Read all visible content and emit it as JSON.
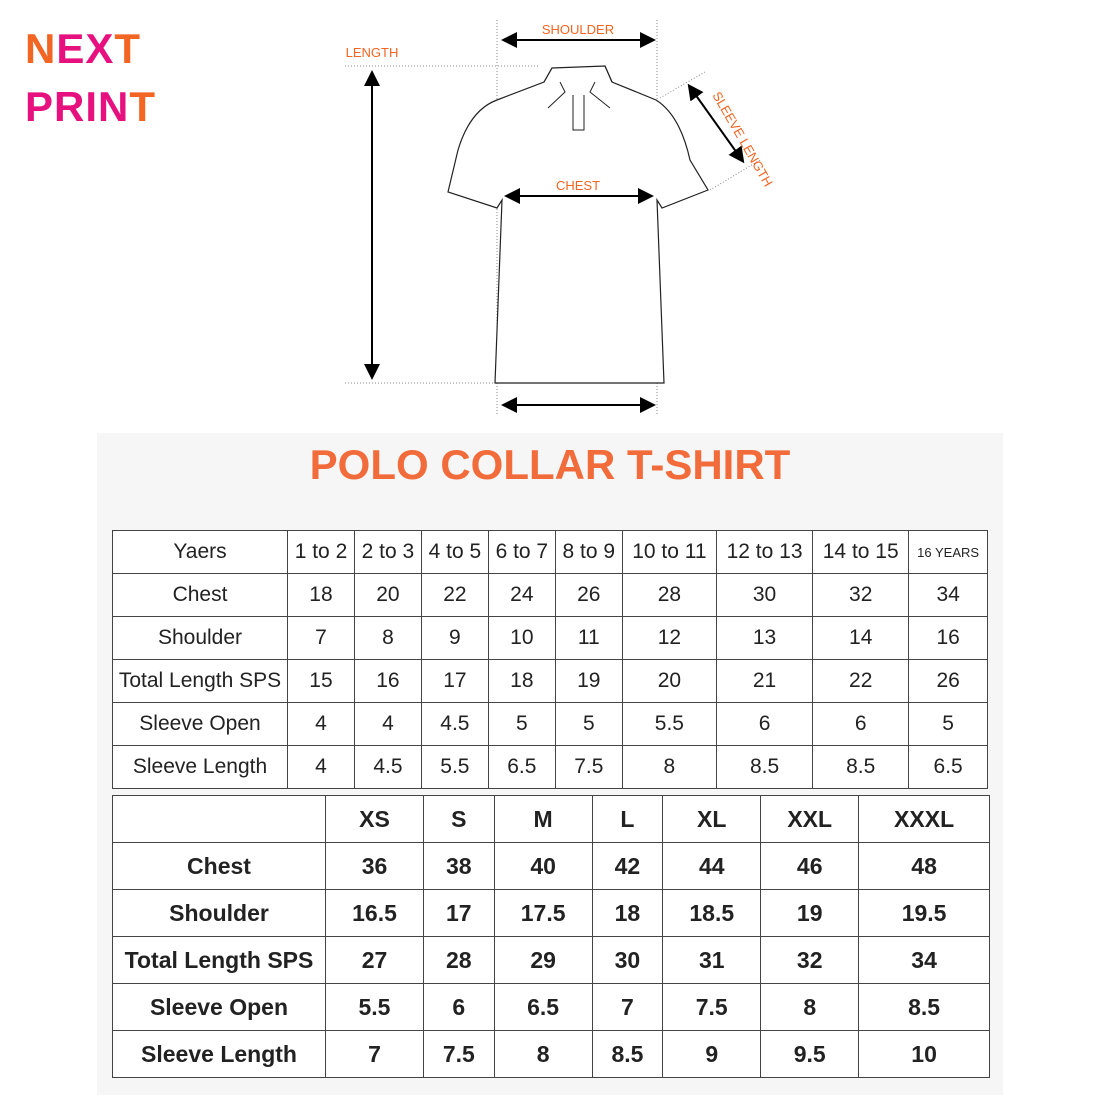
{
  "logo": {
    "line1": "NEXT",
    "line2": "PRINT",
    "colors": {
      "orange": "#f26522",
      "magenta": "#e6117f"
    }
  },
  "diagram": {
    "shoulder": "SHOULDER",
    "length": "LENGTH",
    "sleeve_length": "SLEEVE LENGTH",
    "chest": "CHEST"
  },
  "title": "POLO COLLAR T-SHIRT",
  "kids_table": {
    "header": [
      "Yaers",
      "1 to 2",
      "2 to 3",
      "4 to 5",
      "6 to 7",
      "8 to 9",
      "10 to 11",
      "12 to 13",
      "14 to 15",
      "16 YEARS"
    ],
    "rows": [
      [
        "Chest",
        "18",
        "20",
        "22",
        "24",
        "26",
        "28",
        "30",
        "32",
        "34"
      ],
      [
        "Shoulder",
        "7",
        "8",
        "9",
        "10",
        "11",
        "12",
        "13",
        "14",
        "16"
      ],
      [
        "Total Length SPS",
        "15",
        "16",
        "17",
        "18",
        "19",
        "20",
        "21",
        "22",
        "26"
      ],
      [
        "Sleeve Open",
        "4",
        "4",
        "4.5",
        "5",
        "5",
        "5.5",
        "6",
        "6",
        "5"
      ],
      [
        "Sleeve Length",
        "4",
        "4.5",
        "5.5",
        "6.5",
        "7.5",
        "8",
        "8.5",
        "8.5",
        "6.5"
      ]
    ]
  },
  "adult_table": {
    "header": [
      "",
      "XS",
      "S",
      "M",
      "L",
      "XL",
      "XXL",
      "XXXL"
    ],
    "rows": [
      [
        "Chest",
        "36",
        "38",
        "40",
        "42",
        "44",
        "46",
        "48"
      ],
      [
        "Shoulder",
        "16.5",
        "17",
        "17.5",
        "18",
        "18.5",
        "19",
        "19.5"
      ],
      [
        "Total Length SPS",
        "27",
        "28",
        "29",
        "30",
        "31",
        "32",
        "34"
      ],
      [
        "Sleeve Open",
        "5.5",
        "6",
        "6.5",
        "7",
        "7.5",
        "8",
        "8.5"
      ],
      [
        "Sleeve Length",
        "7",
        "7.5",
        "8",
        "8.5",
        "9",
        "9.5",
        "10"
      ]
    ]
  }
}
